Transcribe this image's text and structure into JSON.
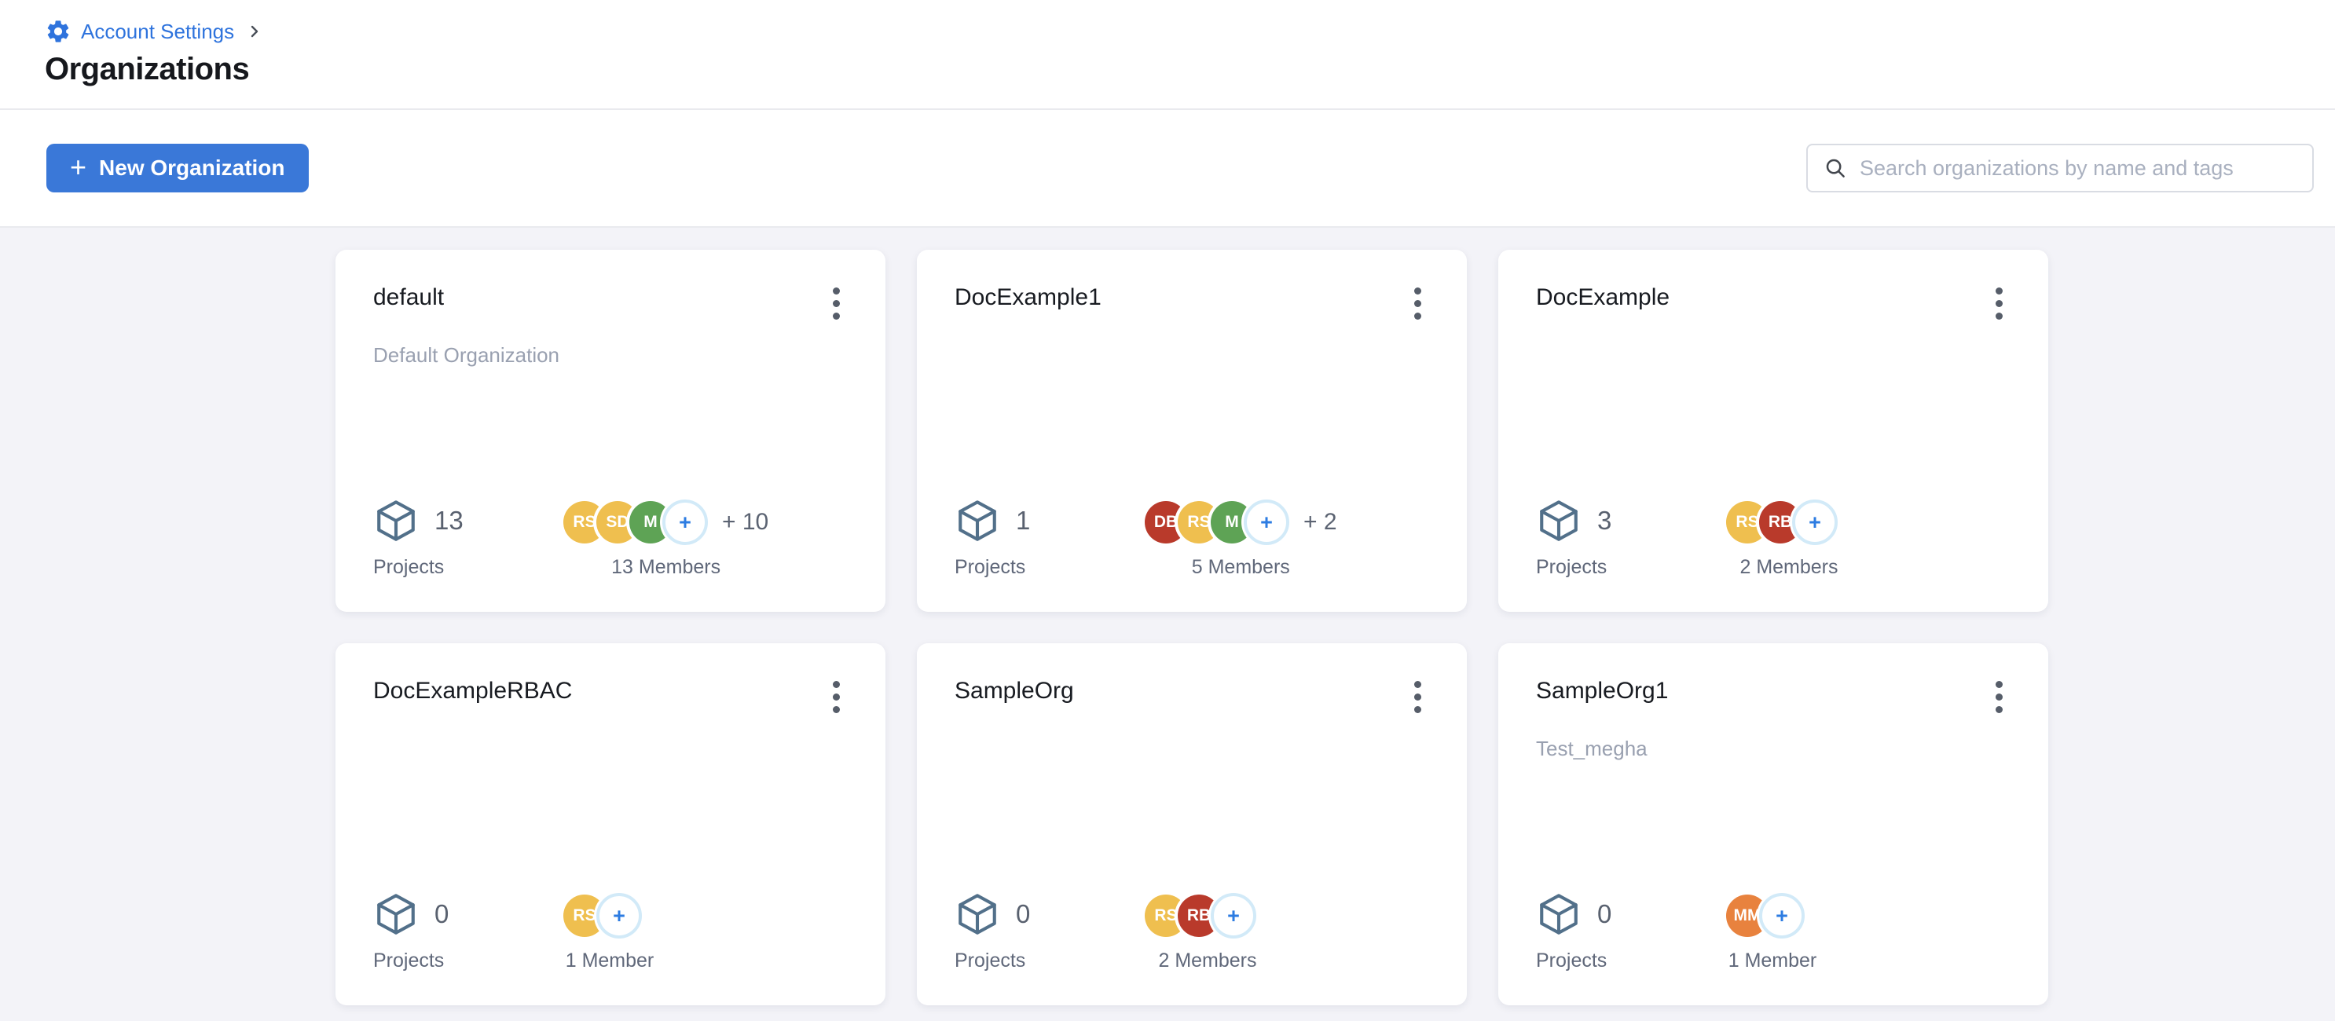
{
  "breadcrumb": {
    "label": "Account Settings",
    "separator": "›"
  },
  "page_title": "Organizations",
  "toolbar": {
    "new_organization": {
      "plus": "+",
      "label": "New Organization"
    },
    "search": {
      "placeholder": "Search organizations by name and tags",
      "value": ""
    }
  },
  "labels": {
    "projects": "Projects"
  },
  "avatar_plus": "+",
  "colors": {
    "accent_blue": "#3a78d8",
    "link_blue": "#2e73dd",
    "background": "#f3f3f8",
    "avatar_amber": "#efbf4f",
    "avatar_green": "#5ea355",
    "avatar_red": "#b93a2b",
    "avatar_orange": "#e8823e",
    "add_avatar_ring": "#d2eaf8",
    "cube_stroke": "#52708a"
  },
  "cards": [
    {
      "title": "default",
      "subtitle": "Default Organization",
      "project_count": "13",
      "members_label": "13 Members",
      "overflow": "+ 10",
      "avatars": [
        {
          "initials": "RS",
          "color": "#efbf4f"
        },
        {
          "initials": "SD",
          "color": "#efbf4f"
        },
        {
          "initials": "M",
          "color": "#5ea355"
        },
        {
          "add": true
        }
      ]
    },
    {
      "title": "DocExample1",
      "subtitle": "",
      "project_count": "1",
      "members_label": "5 Members",
      "overflow": "+ 2",
      "avatars": [
        {
          "initials": "DB",
          "color": "#b93a2b"
        },
        {
          "initials": "RS",
          "color": "#efbf4f"
        },
        {
          "initials": "M",
          "color": "#5ea355"
        },
        {
          "add": true
        }
      ]
    },
    {
      "title": "DocExample",
      "subtitle": "",
      "project_count": "3",
      "members_label": "2 Members",
      "overflow": "",
      "avatars": [
        {
          "initials": "RS",
          "color": "#efbf4f"
        },
        {
          "initials": "RB",
          "color": "#b93a2b"
        },
        {
          "add": true
        }
      ]
    },
    {
      "title": "DocExampleRBAC",
      "subtitle": "",
      "project_count": "0",
      "members_label": "1 Member",
      "overflow": "",
      "avatars": [
        {
          "initials": "RS",
          "color": "#efbf4f"
        },
        {
          "add": true
        }
      ]
    },
    {
      "title": "SampleOrg",
      "subtitle": "",
      "project_count": "0",
      "members_label": "2 Members",
      "overflow": "",
      "avatars": [
        {
          "initials": "RS",
          "color": "#efbf4f"
        },
        {
          "initials": "RB",
          "color": "#b93a2b"
        },
        {
          "add": true
        }
      ]
    },
    {
      "title": "SampleOrg1",
      "subtitle": "Test_megha",
      "project_count": "0",
      "members_label": "1 Member",
      "overflow": "",
      "avatars": [
        {
          "initials": "MM",
          "color": "#e8823e"
        },
        {
          "add": true
        }
      ]
    }
  ]
}
